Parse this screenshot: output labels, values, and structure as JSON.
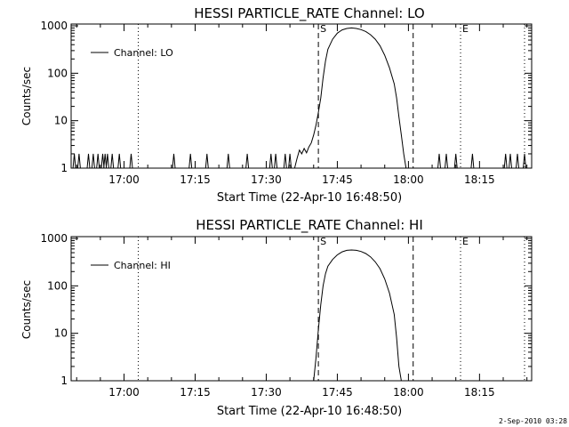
{
  "chart_data": [
    {
      "type": "line",
      "title": "HESSI PARTICLE_RATE Channel: LO",
      "xlabel": "Start Time (22-Apr-10 16:48:50)",
      "ylabel": "Counts/sec",
      "yscale": "log",
      "xlim": [
        "16:48:50",
        "18:26:00"
      ],
      "ylim": [
        1,
        1000
      ],
      "x_ticks": [
        "17:00",
        "17:15",
        "17:30",
        "17:45",
        "18:00",
        "18:15"
      ],
      "y_ticks": [
        "1",
        "10",
        "100",
        "1000"
      ],
      "legend": {
        "label": "Channel: LO",
        "position": "top-left"
      },
      "markers": [
        {
          "label": "S",
          "time": "17:41:00",
          "style": "dashed"
        },
        {
          "label": "",
          "time": "18:01:00",
          "style": "dashed"
        },
        {
          "label": "E",
          "time": "18:11:00",
          "style": "dotted"
        },
        {
          "label": "",
          "time": "17:03:00",
          "style": "dotted"
        },
        {
          "label": "",
          "time": "18:24:30",
          "style": "dotted"
        }
      ],
      "series": [
        {
          "name": "Channel: LO",
          "noise_spikes": [
            "16:49:30",
            "16:50:30",
            "16:52:30",
            "16:53:30",
            "16:54:30",
            "16:55:30",
            "16:56:00",
            "16:56:30",
            "16:57:30",
            "16:59:00",
            "17:01:30",
            "17:10:30",
            "17:14:00",
            "17:17:30",
            "17:22:00",
            "17:26:00",
            "17:31:00",
            "17:32:00",
            "17:34:00",
            "17:35:00",
            "18:06:30",
            "18:08:00",
            "18:10:00",
            "18:13:30",
            "18:20:30",
            "18:21:30",
            "18:23:00",
            "18:24:30"
          ],
          "points": [
            [
              "17:36:00",
              1
            ],
            [
              "17:36:30",
              1.6
            ],
            [
              "17:37:00",
              2.4
            ],
            [
              "17:37:30",
              2.0
            ],
            [
              "17:38:00",
              2.6
            ],
            [
              "17:38:30",
              2.1
            ],
            [
              "17:39:00",
              2.8
            ],
            [
              "17:39:30",
              3.4
            ],
            [
              "17:40:00",
              5
            ],
            [
              "17:40:30",
              8
            ],
            [
              "17:41:00",
              15
            ],
            [
              "17:41:30",
              30
            ],
            [
              "17:42:00",
              80
            ],
            [
              "17:42:30",
              180
            ],
            [
              "17:43:00",
              320
            ],
            [
              "17:44:00",
              520
            ],
            [
              "17:45:00",
              700
            ],
            [
              "17:46:00",
              820
            ],
            [
              "17:47:00",
              880
            ],
            [
              "17:48:00",
              900
            ],
            [
              "17:49:00",
              880
            ],
            [
              "17:50:00",
              830
            ],
            [
              "17:51:00",
              760
            ],
            [
              "17:52:00",
              650
            ],
            [
              "17:53:00",
              520
            ],
            [
              "17:54:00",
              380
            ],
            [
              "17:55:00",
              240
            ],
            [
              "17:56:00",
              130
            ],
            [
              "17:57:00",
              60
            ],
            [
              "17:57:30",
              30
            ],
            [
              "17:58:00",
              12
            ],
            [
              "17:58:30",
              5
            ],
            [
              "17:59:00",
              2
            ],
            [
              "17:59:30",
              1
            ]
          ]
        }
      ]
    },
    {
      "type": "line",
      "title": "HESSI PARTICLE_RATE Channel: HI",
      "xlabel": "Start Time (22-Apr-10 16:48:50)",
      "ylabel": "Counts/sec",
      "yscale": "log",
      "xlim": [
        "16:48:50",
        "18:26:00"
      ],
      "ylim": [
        1,
        1000
      ],
      "x_ticks": [
        "17:00",
        "17:15",
        "17:30",
        "17:45",
        "18:00",
        "18:15"
      ],
      "y_ticks": [
        "1",
        "10",
        "100",
        "1000"
      ],
      "legend": {
        "label": "Channel: HI",
        "position": "top-left"
      },
      "markers": [
        {
          "label": "S",
          "time": "17:41:00",
          "style": "dashed"
        },
        {
          "label": "",
          "time": "18:01:00",
          "style": "dashed"
        },
        {
          "label": "E",
          "time": "18:11:00",
          "style": "dotted"
        },
        {
          "label": "",
          "time": "17:03:00",
          "style": "dotted"
        },
        {
          "label": "",
          "time": "18:24:30",
          "style": "dotted"
        }
      ],
      "series": [
        {
          "name": "Channel: HI",
          "noise_spikes": [],
          "points": [
            [
              "17:40:00",
              1
            ],
            [
              "17:40:30",
              3
            ],
            [
              "17:41:00",
              12
            ],
            [
              "17:41:30",
              40
            ],
            [
              "17:42:00",
              100
            ],
            [
              "17:42:30",
              180
            ],
            [
              "17:43:00",
              260
            ],
            [
              "17:44:00",
              360
            ],
            [
              "17:45:00",
              450
            ],
            [
              "17:46:00",
              520
            ],
            [
              "17:47:00",
              560
            ],
            [
              "17:48:00",
              570
            ],
            [
              "17:49:00",
              560
            ],
            [
              "17:50:00",
              530
            ],
            [
              "17:51:00",
              480
            ],
            [
              "17:52:00",
              410
            ],
            [
              "17:53:00",
              320
            ],
            [
              "17:54:00",
              230
            ],
            [
              "17:55:00",
              140
            ],
            [
              "17:56:00",
              70
            ],
            [
              "17:57:00",
              25
            ],
            [
              "17:57:30",
              8
            ],
            [
              "17:58:00",
              2
            ],
            [
              "17:58:30",
              1
            ]
          ]
        }
      ]
    }
  ],
  "footer": {
    "date_stamp": "2-Sep-2010 03:28"
  }
}
